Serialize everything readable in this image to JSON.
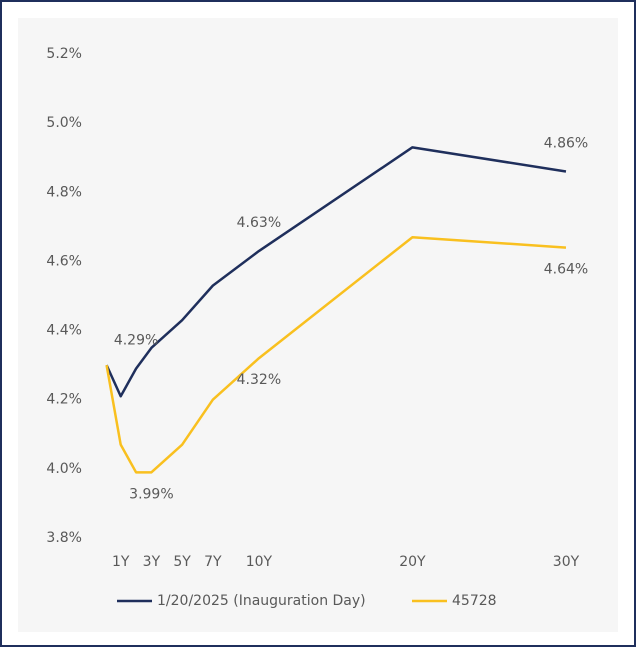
{
  "chart_data": {
    "type": "line",
    "x": [
      0.08,
      1,
      2,
      3,
      5,
      7,
      10,
      20,
      30
    ],
    "xlim": [
      -1,
      31.5
    ],
    "xticks": [
      {
        "value": 1,
        "label": "1Y"
      },
      {
        "value": 3,
        "label": "3Y"
      },
      {
        "value": 5,
        "label": "5Y"
      },
      {
        "value": 7,
        "label": "7Y"
      },
      {
        "value": 10,
        "label": "10Y"
      },
      {
        "value": 20,
        "label": "20Y"
      },
      {
        "value": 30,
        "label": "30Y"
      }
    ],
    "ylim": [
      3.8,
      5.2
    ],
    "yticks": [
      {
        "value": 3.8,
        "label": "3.8%"
      },
      {
        "value": 4.0,
        "label": "4.0%"
      },
      {
        "value": 4.2,
        "label": "4.2%"
      },
      {
        "value": 4.4,
        "label": "4.4%"
      },
      {
        "value": 4.6,
        "label": "4.6%"
      },
      {
        "value": 4.8,
        "label": "4.8%"
      },
      {
        "value": 5.0,
        "label": "5.0%"
      },
      {
        "value": 5.2,
        "label": "5.2%"
      }
    ],
    "grid": false,
    "legend": "bottom",
    "series": [
      {
        "name": "1/20/2025 (Inauguration Day)",
        "color": "#1f2f5c",
        "values": [
          4.3,
          4.21,
          4.29,
          4.35,
          4.43,
          4.53,
          4.63,
          4.93,
          4.86
        ],
        "value_labels": [
          null,
          null,
          "4.29%",
          null,
          null,
          null,
          "4.63%",
          null,
          "4.86%"
        ]
      },
      {
        "name": "45728",
        "color": "#f9c01f",
        "values": [
          4.3,
          4.07,
          3.99,
          3.99,
          4.07,
          4.2,
          4.32,
          4.67,
          4.64
        ],
        "value_labels": [
          null,
          null,
          null,
          "3.99%",
          null,
          null,
          "4.32%",
          null,
          "4.64%"
        ]
      }
    ]
  }
}
